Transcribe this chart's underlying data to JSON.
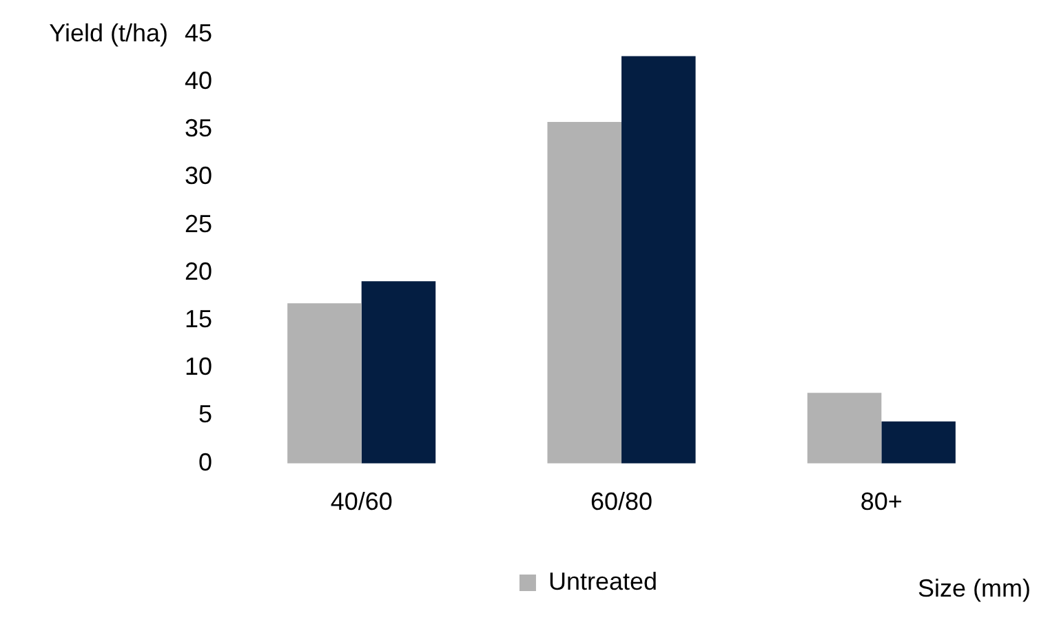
{
  "chart_data": {
    "type": "bar",
    "ylabel": "Yield (t/ha)",
    "xlabel": "Size (mm)",
    "categories": [
      "40/60",
      "60/80",
      "80+"
    ],
    "series": [
      {
        "name": "Untreated",
        "color": "#b2b2b2",
        "values": [
          16.8,
          35.8,
          7.4
        ]
      },
      {
        "color": "#041e42",
        "values": [
          19.1,
          42.7,
          4.4
        ]
      }
    ],
    "ylim": [
      0,
      45
    ],
    "yticks": [
      0,
      5,
      10,
      15,
      20,
      25,
      30,
      35,
      40,
      45
    ],
    "grid": false,
    "legend": "bottom"
  }
}
